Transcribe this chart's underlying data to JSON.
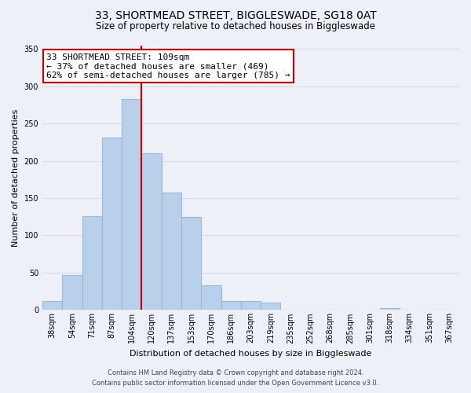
{
  "title": "33, SHORTMEAD STREET, BIGGLESWADE, SG18 0AT",
  "subtitle": "Size of property relative to detached houses in Biggleswade",
  "xlabel": "Distribution of detached houses by size in Biggleswade",
  "ylabel": "Number of detached properties",
  "bar_labels": [
    "38sqm",
    "54sqm",
    "71sqm",
    "87sqm",
    "104sqm",
    "120sqm",
    "137sqm",
    "153sqm",
    "170sqm",
    "186sqm",
    "203sqm",
    "219sqm",
    "235sqm",
    "252sqm",
    "268sqm",
    "285sqm",
    "301sqm",
    "318sqm",
    "334sqm",
    "351sqm",
    "367sqm"
  ],
  "bar_heights": [
    12,
    47,
    126,
    231,
    283,
    210,
    157,
    125,
    33,
    12,
    12,
    10,
    0,
    0,
    0,
    0,
    0,
    2,
    0,
    0,
    0
  ],
  "bar_color": "#b8d0ea",
  "bar_edge_color": "#9ab8d8",
  "vline_x": 4.5,
  "vline_color": "#cc0000",
  "ylim": [
    0,
    355
  ],
  "yticks": [
    0,
    50,
    100,
    150,
    200,
    250,
    300,
    350
  ],
  "annotation_text": "33 SHORTMEAD STREET: 109sqm\n← 37% of detached houses are smaller (469)\n62% of semi-detached houses are larger (785) →",
  "annotation_box_color": "#ffffff",
  "annotation_box_edge_color": "#cc0000",
  "footer_line1": "Contains HM Land Registry data © Crown copyright and database right 2024.",
  "footer_line2": "Contains public sector information licensed under the Open Government Licence v3.0.",
  "background_color": "#eef0f8",
  "grid_color": "#d8dce8",
  "title_fontsize": 10,
  "subtitle_fontsize": 8.5,
  "annotation_fontsize": 8,
  "ylabel_fontsize": 8,
  "xlabel_fontsize": 8,
  "tick_fontsize": 7,
  "footer_fontsize": 6
}
